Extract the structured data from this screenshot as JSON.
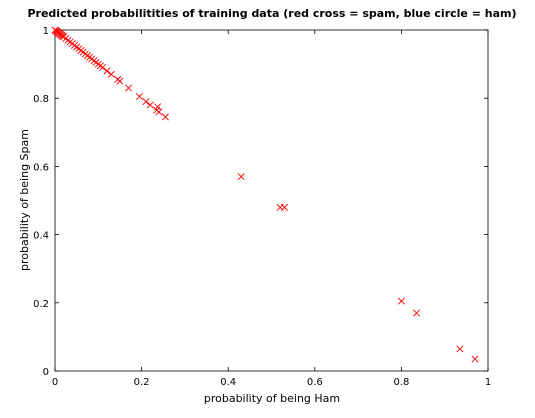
{
  "chart_data": {
    "type": "scatter",
    "title": "Predicted probabilitities of training data (red cross = spam, blue circle = ham)",
    "xlabel": "probability of being Ham",
    "ylabel": "probability of being Spam",
    "xlim": [
      0,
      1
    ],
    "ylim": [
      0,
      1
    ],
    "xticks": [
      0,
      0.2,
      0.4,
      0.6,
      0.8,
      1
    ],
    "yticks": [
      0,
      0.2,
      0.4,
      0.6,
      0.8,
      1
    ],
    "xtick_labels": [
      "0",
      "0.2",
      "0.4",
      "0.6",
      "0.8",
      "1"
    ],
    "ytick_labels": [
      "0",
      "0.2",
      "0.4",
      "0.6",
      "0.8",
      "1"
    ],
    "grid": false,
    "series": [
      {
        "marker": "cross",
        "color": "#ff0000",
        "x": [
          0.0,
          0.002,
          0.004,
          0.006,
          0.008,
          0.01,
          0.012,
          0.014,
          0.016,
          0.018,
          0.02,
          0.025,
          0.03,
          0.035,
          0.04,
          0.045,
          0.05,
          0.055,
          0.06,
          0.065,
          0.07,
          0.075,
          0.08,
          0.085,
          0.09,
          0.095,
          0.1,
          0.105,
          0.11,
          0.12,
          0.13,
          0.145,
          0.15,
          0.17,
          0.195,
          0.21,
          0.22,
          0.235,
          0.237,
          0.24,
          0.255,
          0.43,
          0.52,
          0.53,
          0.8,
          0.835,
          0.935,
          0.97
        ],
        "y": [
          1.0,
          0.998,
          0.996,
          0.994,
          0.992,
          0.99,
          0.988,
          0.986,
          0.984,
          0.982,
          0.98,
          0.975,
          0.97,
          0.965,
          0.96,
          0.955,
          0.95,
          0.945,
          0.94,
          0.935,
          0.93,
          0.925,
          0.92,
          0.915,
          0.91,
          0.905,
          0.9,
          0.895,
          0.89,
          0.88,
          0.87,
          0.855,
          0.85,
          0.83,
          0.805,
          0.79,
          0.78,
          0.765,
          0.775,
          0.76,
          0.745,
          0.57,
          0.48,
          0.48,
          0.205,
          0.17,
          0.065,
          0.035
        ]
      }
    ]
  }
}
